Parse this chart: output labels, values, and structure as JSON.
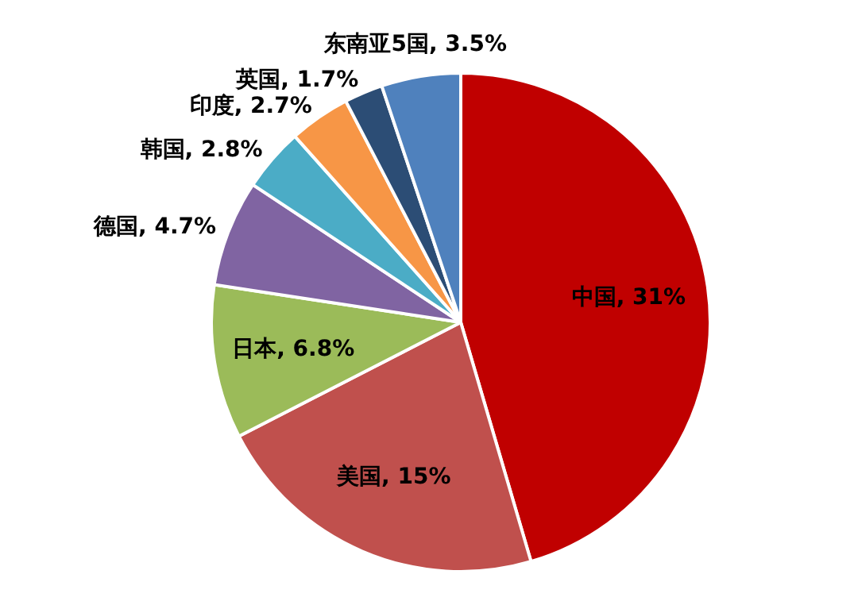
{
  "chart_data": {
    "type": "pie",
    "categories": [
      "中国",
      "美国",
      "日本",
      "德国",
      "韩国",
      "印度",
      "英国",
      "东南亚5国"
    ],
    "values": [
      31,
      15,
      6.8,
      4.7,
      2.8,
      2.7,
      1.7,
      3.5
    ],
    "value_labels": [
      "31%",
      "15%",
      "6.8%",
      "4.7%",
      "2.8%",
      "2.7%",
      "1.7%",
      "3.5%"
    ],
    "colors": [
      "#c00000",
      "#c0504d",
      "#9bbb59",
      "#8064a2",
      "#4bacc6",
      "#f79646",
      "#2c4d75",
      "#4f81bd"
    ],
    "legend": false
  }
}
